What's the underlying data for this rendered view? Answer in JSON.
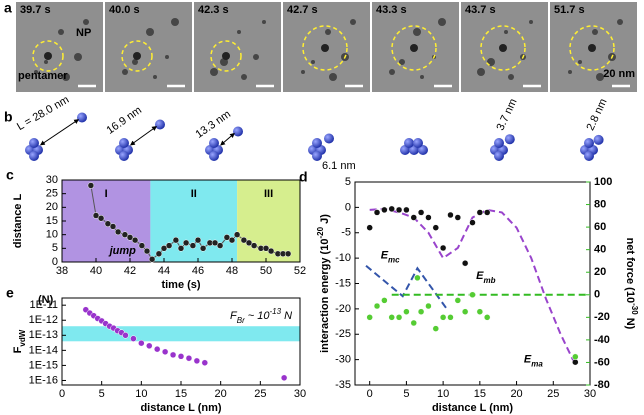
{
  "panel_a": {
    "label": "a",
    "frames": [
      "39.7 s",
      "40.0 s",
      "42.3 s",
      "42.7 s",
      "43.3 s",
      "43.7 s",
      "51.7 s"
    ],
    "np": "NP",
    "pentamer": "pentamer",
    "scale": "20 nm"
  },
  "panel_b": {
    "label": "b",
    "distances": [
      "L = 28.0 nm",
      "16.9 nm",
      "13.3 nm",
      "6.1 nm",
      "3.7 nm",
      "2.8 nm"
    ]
  },
  "chart_data": [
    {
      "type": "scatter",
      "label": "c",
      "xlabel": "time (s)",
      "ylabel": "distance L",
      "xlim": [
        38,
        52
      ],
      "xticks": [
        38,
        40,
        42,
        44,
        46,
        48,
        50,
        52
      ],
      "ylim": [
        0,
        30
      ],
      "yticks": [
        0,
        5,
        10,
        15,
        20,
        25,
        30
      ],
      "regions": [
        {
          "label": "I",
          "range": [
            38,
            43.2
          ],
          "color": "#b193e2"
        },
        {
          "label": "II",
          "range": [
            43.2,
            48.3
          ],
          "color": "#7fe9ef"
        },
        {
          "label": "III",
          "range": [
            48.3,
            52
          ],
          "color": "#d6ee8e"
        }
      ],
      "annotations": [
        {
          "text": "jump",
          "x": 40.8,
          "y": 4
        }
      ],
      "series": [
        {
          "color": "#222222",
          "line": "solid",
          "marker": true,
          "x": [
            39.7,
            40.0,
            40.3,
            40.7,
            41.0,
            41.3,
            41.7,
            42.0,
            42.3,
            42.7,
            43.0,
            43.3,
            43.7,
            44.0,
            44.3,
            44.7,
            45.0,
            45.3,
            45.7,
            46.0,
            46.3,
            46.7,
            47.0,
            47.3,
            47.7,
            48.0,
            48.3,
            48.7,
            49.0,
            49.3,
            49.7,
            50.0,
            50.3,
            50.7,
            51.0,
            51.3
          ],
          "values": [
            28,
            17,
            16,
            14,
            13,
            11,
            10,
            9,
            8,
            6,
            4,
            1,
            3,
            5,
            6,
            8,
            5,
            7,
            6,
            8,
            5,
            7,
            7,
            6,
            9,
            8,
            10,
            8,
            7,
            6,
            5,
            5,
            4,
            3,
            3,
            3
          ]
        }
      ]
    },
    {
      "type": "scatter",
      "label": "d",
      "xlabel": "distance L (nm)",
      "ylabel": [
        {
          "text": "interaction energy (10"
        },
        {
          "text": "-20",
          "script": "sup"
        },
        {
          "text": " J)"
        }
      ],
      "y2label": [
        {
          "text": "net force (10"
        },
        {
          "text": "-30",
          "script": "sup"
        },
        {
          "text": " N)"
        }
      ],
      "xlim": [
        -2,
        30
      ],
      "xticks": [
        0,
        5,
        10,
        15,
        20,
        25,
        30
      ],
      "ylim": [
        -35,
        5
      ],
      "yticks": [
        -35,
        -30,
        -25,
        -20,
        -15,
        -10,
        -5,
        0,
        5
      ],
      "y2lim": [
        -80,
        100
      ],
      "y2ticks": [
        -80,
        -60,
        -40,
        -20,
        0,
        20,
        40,
        60,
        80,
        100
      ],
      "y2color": "#33bb22",
      "annotations": [
        {
          "text": [
            {
              "text": "E"
            },
            {
              "text": "mc",
              "script": "sub"
            }
          ],
          "x": 1.5,
          "y": -9.5
        },
        {
          "text": [
            {
              "text": "E"
            },
            {
              "text": "mb",
              "script": "sub"
            }
          ],
          "x": 14.5,
          "y": -13.5
        },
        {
          "text": [
            {
              "text": "E"
            },
            {
              "text": "ma",
              "script": "sub"
            }
          ],
          "x": 21,
          "y": -30
        }
      ],
      "series": [
        {
          "color": "#9944cc",
          "line": "dashed",
          "marker": false,
          "x": [
            0,
            2,
            4,
            6,
            8,
            10,
            12,
            14,
            16,
            18,
            20,
            22,
            24,
            26,
            28
          ],
          "values": [
            -0.5,
            -0.3,
            -1,
            -2,
            -5,
            -10,
            -8,
            -2,
            -0.5,
            -1,
            -4,
            -10,
            -18,
            -25,
            -31
          ]
        },
        {
          "color": "#3355aa",
          "line": "dashed",
          "marker": false,
          "x": [
            -0.5,
            4.5,
            6.5,
            10.5
          ],
          "values": [
            -11.5,
            -17.5,
            -12,
            -20
          ]
        },
        {
          "color": "#33bb22",
          "line": "dashed",
          "marker": false,
          "axis": "y2",
          "x": [
            3,
            30
          ],
          "values": [
            0,
            0
          ]
        },
        {
          "color": "#111111",
          "line": "none",
          "marker": true,
          "x": [
            0,
            1,
            2,
            3,
            4,
            5,
            6,
            7,
            8,
            9,
            10,
            11,
            12,
            13,
            14,
            15,
            16,
            28
          ],
          "values": [
            -4,
            -1,
            -0.5,
            -0.3,
            -0.5,
            -0.5,
            -2,
            -1,
            -2,
            -4,
            -8,
            -1.5,
            -2,
            -11,
            -3,
            -1,
            -1,
            -30.5
          ]
        },
        {
          "color": "#55cc33",
          "line": "none",
          "marker": true,
          "axis": "y2",
          "x": [
            0,
            1,
            2,
            3,
            4,
            5,
            6,
            6.5,
            7,
            8,
            9,
            10,
            11,
            12,
            13,
            14,
            15,
            16,
            28
          ],
          "values": [
            -20,
            -10,
            -5,
            -20,
            -20,
            -15,
            -25,
            15,
            -15,
            -10,
            -30,
            -20,
            -20,
            -5,
            -15,
            0,
            -15,
            -20,
            -55
          ]
        }
      ]
    },
    {
      "type": "scatter",
      "label": "e",
      "log": true,
      "xlabel": "distance L (nm)",
      "ylabel": [
        {
          "text": "F"
        },
        {
          "text": "vdW",
          "script": "sub"
        }
      ],
      "yunit": "(N)",
      "xlim": [
        0,
        30
      ],
      "xticks": [
        0,
        5,
        10,
        15,
        20,
        25,
        30
      ],
      "ylim": [
        5e-17,
        3e-11
      ],
      "yticks": [
        {
          "value": 1e-11,
          "label": "1E-11"
        },
        {
          "value": 1e-12,
          "label": "1E-12"
        },
        {
          "value": 1e-13,
          "label": "1E-13"
        },
        {
          "value": 1e-14,
          "label": "1E-14"
        },
        {
          "value": 1e-15,
          "label": "1E-15"
        },
        {
          "value": 1e-16,
          "label": "1E-16"
        }
      ],
      "band": [
        4e-14,
        4e-13
      ],
      "band_color": "#7fe9ef",
      "band_label": [
        {
          "text": "F"
        },
        {
          "text": "Br",
          "script": "sub"
        },
        {
          "text": " ~ 10"
        },
        {
          "text": "-13",
          "script": "sup"
        },
        {
          "text": " N"
        }
      ],
      "series": [
        {
          "color": "#9933cc",
          "line": "none",
          "marker": true,
          "x": [
            3,
            3.5,
            4,
            4.5,
            5,
            5.5,
            6,
            6.5,
            7,
            7.5,
            8,
            9,
            10,
            11,
            12,
            13,
            14,
            15,
            16,
            17,
            18,
            28
          ],
          "values": [
            5e-12,
            3e-12,
            2e-12,
            1.3e-12,
            9e-13,
            6e-13,
            4e-13,
            3e-13,
            2e-13,
            1.5e-13,
            1e-13,
            6e-14,
            3e-14,
            2e-14,
            1.2e-14,
            8e-15,
            5e-15,
            4e-15,
            3e-15,
            2e-15,
            1.5e-15,
            1.5e-16
          ]
        }
      ]
    }
  ]
}
